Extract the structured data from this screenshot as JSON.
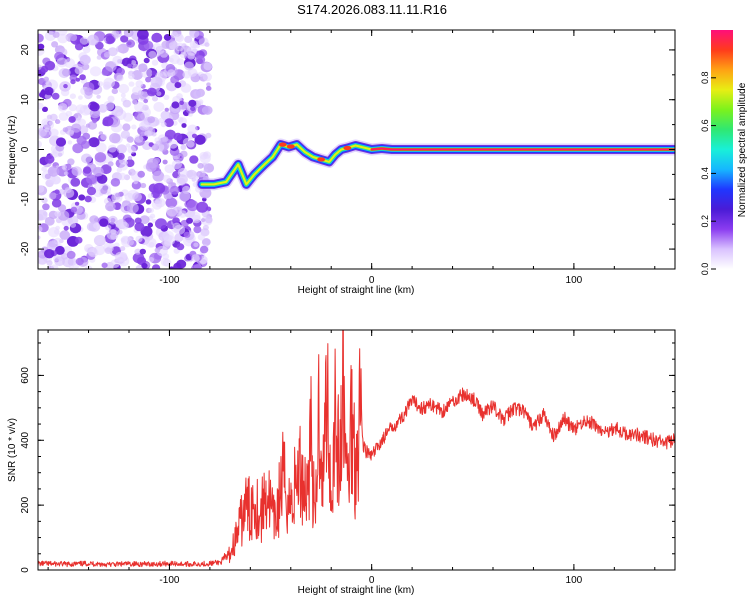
{
  "title": "S174.2026.083.11.11.R16",
  "colors": {
    "snr_line": "#e8312e",
    "background": "#ffffff",
    "axis": "#000000",
    "colormap": [
      "#ffffff",
      "#d9c2ff",
      "#8b3cf0",
      "#4a1bd6",
      "#1f37ff",
      "#16b7ff",
      "#19f0d8",
      "#2fe872",
      "#7cf21c",
      "#e8ee14",
      "#ffa214",
      "#ff3b1c",
      "#ff0f7a"
    ]
  },
  "chart_data": [
    {
      "type": "heatmap",
      "xlabel": "Height of straight line (km)",
      "ylabel": "Frequency (Hz)",
      "xlim": [
        -165,
        150
      ],
      "ylim": [
        -24,
        24
      ],
      "xticks": [
        -100,
        0,
        100
      ],
      "yticks": [
        -20,
        -10,
        0,
        10,
        20
      ],
      "grid": false,
      "noise_region_x": [
        -165,
        -80
      ],
      "ridge": {
        "x": [
          -84,
          -78,
          -72,
          -66,
          -62,
          -58,
          -53,
          -49,
          -45,
          -41,
          -37,
          -33,
          -29,
          -25,
          -21,
          -18,
          -15,
          -12,
          -8,
          -4,
          0,
          5,
          10,
          20,
          40,
          60,
          80,
          100,
          120,
          140,
          150
        ],
        "frequency": [
          -7,
          -7,
          -6.5,
          -3,
          -7,
          -5,
          -3,
          -1.5,
          1,
          0.5,
          1,
          -0.5,
          -1.5,
          -2,
          -2.5,
          -1,
          0,
          0.3,
          0.8,
          0.4,
          0,
          0.2,
          0,
          0,
          0,
          0,
          0,
          0,
          0,
          0,
          0
        ]
      },
      "colorbar": {
        "label": "Normalized spectral amplitude",
        "range": [
          0,
          1
        ],
        "ticks": [
          "0.0",
          "0.2",
          "0.4",
          "0.6",
          "0.8"
        ]
      }
    },
    {
      "type": "line",
      "xlabel": "Height of straight line (km)",
      "ylabel": "SNR (10 * v/v)",
      "xlim": [
        -165,
        150
      ],
      "ylim": [
        0,
        740
      ],
      "xticks": [
        -100,
        0,
        100
      ],
      "yticks": [
        0,
        200,
        400,
        600
      ],
      "grid": false,
      "series": [
        {
          "x": [
            -165,
            -150,
            -140,
            -130,
            -120,
            -110,
            -100,
            -90,
            -80,
            -74,
            -70,
            -66,
            -62,
            -60,
            -58,
            -55,
            -52,
            -48,
            -44,
            -40,
            -36,
            -32,
            -30,
            -28,
            -26,
            -24,
            -22,
            -20,
            -18,
            -16,
            -14,
            -12,
            -10,
            -8,
            -6,
            -4,
            -2,
            0,
            5,
            10,
            15,
            20,
            25,
            30,
            35,
            40,
            45,
            50,
            55,
            60,
            65,
            70,
            75,
            80,
            85,
            90,
            95,
            100,
            105,
            110,
            115,
            120,
            125,
            130,
            135,
            140,
            145,
            150
          ],
          "values": [
            20,
            18,
            20,
            17,
            19,
            18,
            20,
            18,
            20,
            25,
            50,
            120,
            200,
            180,
            230,
            160,
            250,
            140,
            280,
            200,
            310,
            250,
            420,
            120,
            520,
            280,
            600,
            200,
            520,
            300,
            560,
            250,
            480,
            330,
            520,
            380,
            360,
            350,
            400,
            440,
            470,
            520,
            500,
            510,
            490,
            520,
            540,
            530,
            480,
            510,
            460,
            500,
            490,
            440,
            480,
            410,
            470,
            430,
            460,
            450,
            420,
            440,
            420,
            420,
            410,
            400,
            390,
            400
          ]
        }
      ]
    }
  ]
}
